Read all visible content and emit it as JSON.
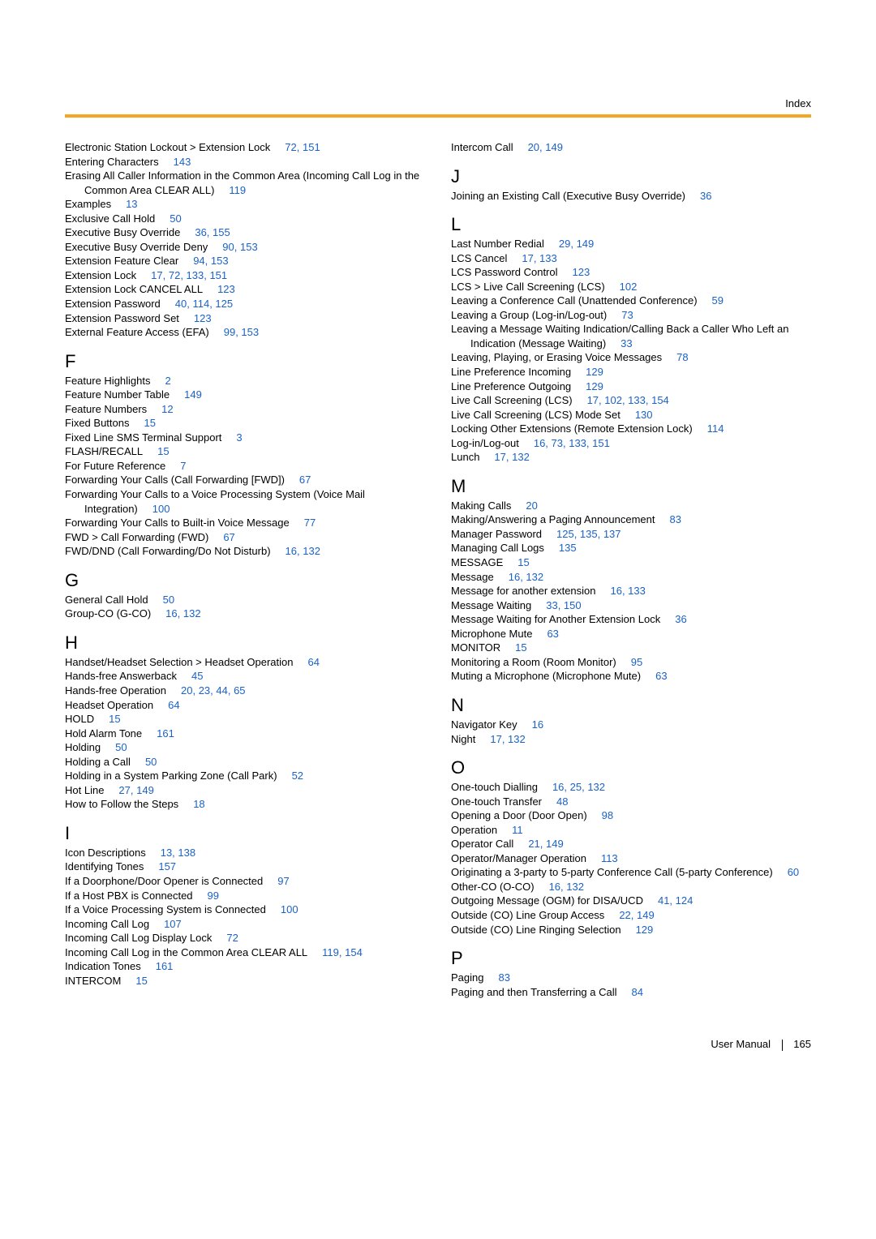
{
  "header": {
    "label": "Index"
  },
  "footer": {
    "left": "User Manual",
    "pageNum": "165"
  },
  "columns": {
    "left": [
      {
        "type": "entry",
        "text": "Electronic Station Lockout  > Extension Lock",
        "pages": "72, 151",
        "name": "idx-electronic-station-lockout"
      },
      {
        "type": "entry",
        "text": "Entering Characters",
        "pages": "143",
        "name": "idx-entering-characters"
      },
      {
        "type": "entry",
        "text": "Erasing All Caller Information in the Common Area (Incoming Call Log in the Common Area CLEAR ALL)",
        "pages": "119",
        "name": "idx-erasing-caller-info"
      },
      {
        "type": "entry",
        "text": "Examples",
        "pages": "13",
        "name": "idx-examples"
      },
      {
        "type": "entry",
        "text": "Exclusive Call Hold",
        "pages": "50",
        "name": "idx-exclusive-call-hold"
      },
      {
        "type": "entry",
        "text": "Executive Busy Override",
        "pages": "36, 155",
        "name": "idx-executive-busy-override"
      },
      {
        "type": "entry",
        "text": "Executive Busy Override Deny",
        "pages": "90, 153",
        "name": "idx-executive-busy-override-deny"
      },
      {
        "type": "entry",
        "text": "Extension Feature Clear",
        "pages": "94, 153",
        "name": "idx-extension-feature-clear"
      },
      {
        "type": "entry",
        "text": "Extension Lock",
        "pages": "17, 72, 133, 151",
        "name": "idx-extension-lock"
      },
      {
        "type": "entry",
        "text": "Extension Lock CANCEL ALL",
        "pages": "123",
        "name": "idx-extension-lock-cancel-all"
      },
      {
        "type": "entry",
        "text": "Extension Password",
        "pages": "40, 114, 125",
        "name": "idx-extension-password"
      },
      {
        "type": "entry",
        "text": "Extension Password Set",
        "pages": "123",
        "name": "idx-extension-password-set"
      },
      {
        "type": "entry",
        "text": "External Feature Access (EFA)",
        "pages": "99, 153",
        "name": "idx-external-feature-access"
      },
      {
        "type": "letter",
        "text": "F",
        "name": "letter-f"
      },
      {
        "type": "entry",
        "text": "Feature Highlights",
        "pages": "2",
        "name": "idx-feature-highlights"
      },
      {
        "type": "entry",
        "text": "Feature Number Table",
        "pages": "149",
        "name": "idx-feature-number-table"
      },
      {
        "type": "entry",
        "text": "Feature Numbers",
        "pages": "12",
        "name": "idx-feature-numbers"
      },
      {
        "type": "entry",
        "text": "Fixed Buttons",
        "pages": "15",
        "name": "idx-fixed-buttons"
      },
      {
        "type": "entry",
        "text": "Fixed Line SMS Terminal Support",
        "pages": "3",
        "name": "idx-fixed-line-sms"
      },
      {
        "type": "entry",
        "text": "FLASH/RECALL",
        "pages": "15",
        "name": "idx-flash-recall"
      },
      {
        "type": "entry",
        "text": "For Future Reference",
        "pages": "7",
        "name": "idx-for-future-reference"
      },
      {
        "type": "entry",
        "text": "Forwarding Your Calls (Call Forwarding [FWD])",
        "pages": "67",
        "name": "idx-forwarding-calls"
      },
      {
        "type": "entry",
        "text": "Forwarding Your Calls to a Voice Processing System (Voice Mail Integration)",
        "pages": "100",
        "name": "idx-forwarding-voice-processing"
      },
      {
        "type": "entry",
        "text": "Forwarding Your Calls to Built-in Voice Message",
        "pages": "77",
        "name": "idx-forwarding-builtin-voice"
      },
      {
        "type": "entry",
        "text": "FWD  > Call Forwarding (FWD)",
        "pages": "67",
        "name": "idx-fwd-call-forwarding"
      },
      {
        "type": "entry",
        "text": "FWD/DND (Call Forwarding/Do Not Disturb)",
        "pages": "16, 132",
        "name": "idx-fwd-dnd"
      },
      {
        "type": "letter",
        "text": "G",
        "name": "letter-g"
      },
      {
        "type": "entry",
        "text": "General Call Hold",
        "pages": "50",
        "name": "idx-general-call-hold"
      },
      {
        "type": "entry",
        "text": "Group-CO (G-CO)",
        "pages": "16, 132",
        "name": "idx-group-co"
      },
      {
        "type": "letter",
        "text": "H",
        "name": "letter-h"
      },
      {
        "type": "entry",
        "text": "Handset/Headset Selection  > Headset Operation",
        "pages": "64",
        "name": "idx-handset-headset-selection"
      },
      {
        "type": "entry",
        "text": "Hands-free Answerback",
        "pages": "45",
        "name": "idx-hands-free-answerback"
      },
      {
        "type": "entry",
        "text": "Hands-free Operation",
        "pages": "20, 23, 44, 65",
        "name": "idx-hands-free-operation"
      },
      {
        "type": "entry",
        "text": "Headset Operation",
        "pages": "64",
        "name": "idx-headset-operation"
      },
      {
        "type": "entry",
        "text": "HOLD",
        "pages": "15",
        "name": "idx-hold"
      },
      {
        "type": "entry",
        "text": "Hold Alarm Tone",
        "pages": "161",
        "name": "idx-hold-alarm-tone"
      },
      {
        "type": "entry",
        "text": "Holding",
        "pages": "50",
        "name": "idx-holding"
      },
      {
        "type": "entry",
        "text": "Holding a Call",
        "pages": "50",
        "name": "idx-holding-a-call"
      },
      {
        "type": "entry",
        "text": "Holding in a System Parking Zone (Call Park)",
        "pages": "52",
        "name": "idx-holding-parking-zone"
      },
      {
        "type": "entry",
        "text": "Hot Line",
        "pages": "27, 149",
        "name": "idx-hot-line"
      },
      {
        "type": "entry",
        "text": "How to Follow the Steps",
        "pages": "18",
        "name": "idx-how-to-follow"
      },
      {
        "type": "letter",
        "text": "I",
        "name": "letter-i"
      },
      {
        "type": "entry",
        "text": "Icon Descriptions",
        "pages": "13, 138",
        "name": "idx-icon-descriptions"
      },
      {
        "type": "entry",
        "text": "Identifying Tones",
        "pages": "157",
        "name": "idx-identifying-tones"
      },
      {
        "type": "entry",
        "text": "If a Doorphone/Door Opener is Connected",
        "pages": "97",
        "name": "idx-doorphone-connected"
      },
      {
        "type": "entry",
        "text": "If a Host PBX is Connected",
        "pages": "99",
        "name": "idx-host-pbx-connected"
      },
      {
        "type": "entry",
        "text": "If a Voice Processing System is Connected",
        "pages": "100",
        "name": "idx-voice-processing-connected"
      },
      {
        "type": "entry",
        "text": "Incoming Call Log",
        "pages": "107",
        "name": "idx-incoming-call-log"
      },
      {
        "type": "entry",
        "text": "Incoming Call Log Display Lock",
        "pages": "72",
        "name": "idx-incoming-call-log-display-lock"
      },
      {
        "type": "entry",
        "text": "Incoming Call Log in the Common Area CLEAR ALL",
        "pages": "119, 154",
        "name": "idx-incoming-call-log-clear-all"
      },
      {
        "type": "entry",
        "text": "Indication Tones",
        "pages": "161",
        "name": "idx-indication-tones"
      },
      {
        "type": "entry",
        "text": "INTERCOM",
        "pages": "15",
        "name": "idx-intercom-caps"
      }
    ],
    "right": [
      {
        "type": "entry",
        "text": "Intercom Call",
        "pages": "20, 149",
        "name": "idx-intercom-call"
      },
      {
        "type": "letter",
        "text": "J",
        "name": "letter-j"
      },
      {
        "type": "entry",
        "text": "Joining an Existing Call (Executive Busy Override)",
        "pages": "36",
        "name": "idx-joining-existing-call"
      },
      {
        "type": "letter",
        "text": "L",
        "name": "letter-l"
      },
      {
        "type": "entry",
        "text": "Last Number Redial",
        "pages": "29, 149",
        "name": "idx-last-number-redial"
      },
      {
        "type": "entry",
        "text": "LCS Cancel",
        "pages": "17, 133",
        "name": "idx-lcs-cancel"
      },
      {
        "type": "entry",
        "text": "LCS Password Control",
        "pages": "123",
        "name": "idx-lcs-password-control"
      },
      {
        "type": "entry",
        "text": "LCS  > Live Call Screening (LCS)",
        "pages": "102",
        "name": "idx-lcs-live-call-screening"
      },
      {
        "type": "entry",
        "text": "Leaving a Conference Call (Unattended Conference)",
        "pages": "59",
        "name": "idx-leaving-conference"
      },
      {
        "type": "entry",
        "text": "Leaving a Group (Log-in/Log-out)",
        "pages": "73",
        "name": "idx-leaving-group"
      },
      {
        "type": "entry",
        "text": "Leaving a Message Waiting Indication/Calling Back a Caller Who Left an Indication (Message Waiting)",
        "pages": "33",
        "name": "idx-leaving-message-waiting"
      },
      {
        "type": "entry",
        "text": "Leaving, Playing, or Erasing Voice Messages",
        "pages": "78",
        "name": "idx-leaving-playing-erasing"
      },
      {
        "type": "entry",
        "text": "Line Preference Incoming",
        "pages": "129",
        "name": "idx-line-pref-incoming"
      },
      {
        "type": "entry",
        "text": "Line Preference Outgoing",
        "pages": "129",
        "name": "idx-line-pref-outgoing"
      },
      {
        "type": "entry",
        "text": "Live Call Screening (LCS)",
        "pages": "17, 102, 133, 154",
        "name": "idx-live-call-screening"
      },
      {
        "type": "entry",
        "text": "Live Call Screening (LCS) Mode Set",
        "pages": "130",
        "name": "idx-lcs-mode-set"
      },
      {
        "type": "entry",
        "text": "Locking Other Extensions (Remote Extension Lock)",
        "pages": "114",
        "name": "idx-locking-other-extensions"
      },
      {
        "type": "entry",
        "text": "Log-in/Log-out",
        "pages": "16, 73, 133, 151",
        "name": "idx-log-in-log-out"
      },
      {
        "type": "entry",
        "text": "Lunch",
        "pages": "17, 132",
        "name": "idx-lunch"
      },
      {
        "type": "letter",
        "text": "M",
        "name": "letter-m"
      },
      {
        "type": "entry",
        "text": "Making Calls",
        "pages": "20",
        "name": "idx-making-calls"
      },
      {
        "type": "entry",
        "text": "Making/Answering a Paging Announcement",
        "pages": "83",
        "name": "idx-making-answering-paging"
      },
      {
        "type": "entry",
        "text": "Manager Password",
        "pages": "125, 135, 137",
        "name": "idx-manager-password"
      },
      {
        "type": "entry",
        "text": "Managing Call Logs",
        "pages": "135",
        "name": "idx-managing-call-logs"
      },
      {
        "type": "entry",
        "text": "MESSAGE",
        "pages": "15",
        "name": "idx-message-caps"
      },
      {
        "type": "entry",
        "text": "Message",
        "pages": "16, 132",
        "name": "idx-message"
      },
      {
        "type": "entry",
        "text": "Message for another extension",
        "pages": "16, 133",
        "name": "idx-message-other-ext"
      },
      {
        "type": "entry",
        "text": "Message Waiting",
        "pages": "33, 150",
        "name": "idx-message-waiting"
      },
      {
        "type": "entry",
        "text": "Message Waiting for Another Extension Lock",
        "pages": "36",
        "name": "idx-message-waiting-lock"
      },
      {
        "type": "entry",
        "text": "Microphone Mute",
        "pages": "63",
        "name": "idx-microphone-mute"
      },
      {
        "type": "entry",
        "text": "MONITOR",
        "pages": "15",
        "name": "idx-monitor"
      },
      {
        "type": "entry",
        "text": "Monitoring a Room (Room Monitor)",
        "pages": "95",
        "name": "idx-monitoring-room"
      },
      {
        "type": "entry",
        "text": "Muting a Microphone (Microphone Mute)",
        "pages": "63",
        "name": "idx-muting-microphone"
      },
      {
        "type": "letter",
        "text": "N",
        "name": "letter-n"
      },
      {
        "type": "entry",
        "text": "Navigator Key",
        "pages": "16",
        "name": "idx-navigator-key"
      },
      {
        "type": "entry",
        "text": "Night",
        "pages": "17, 132",
        "name": "idx-night"
      },
      {
        "type": "letter",
        "text": "O",
        "name": "letter-o"
      },
      {
        "type": "entry",
        "text": "One-touch Dialling",
        "pages": "16, 25, 132",
        "name": "idx-one-touch-dialling"
      },
      {
        "type": "entry",
        "text": "One-touch Transfer",
        "pages": "48",
        "name": "idx-one-touch-transfer"
      },
      {
        "type": "entry",
        "text": "Opening a Door (Door Open)",
        "pages": "98",
        "name": "idx-opening-door"
      },
      {
        "type": "entry",
        "text": "Operation",
        "pages": "11",
        "name": "idx-operation"
      },
      {
        "type": "entry",
        "text": "Operator Call",
        "pages": "21, 149",
        "name": "idx-operator-call"
      },
      {
        "type": "entry",
        "text": "Operator/Manager Operation",
        "pages": "113",
        "name": "idx-operator-manager"
      },
      {
        "type": "entry",
        "text": "Originating a 3-party to 5-party Conference Call (5-party Conference)",
        "pages": "60",
        "name": "idx-originating-conference"
      },
      {
        "type": "entry",
        "text": "Other-CO (O-CO)",
        "pages": "16, 132",
        "name": "idx-other-co"
      },
      {
        "type": "entry",
        "text": "Outgoing Message (OGM) for DISA/UCD",
        "pages": "41, 124",
        "name": "idx-outgoing-message"
      },
      {
        "type": "entry",
        "text": "Outside (CO) Line Group Access",
        "pages": "22, 149",
        "name": "idx-outside-line-group"
      },
      {
        "type": "entry",
        "text": "Outside (CO) Line Ringing Selection",
        "pages": "129",
        "name": "idx-outside-line-ringing"
      },
      {
        "type": "letter",
        "text": "P",
        "name": "letter-p"
      },
      {
        "type": "entry",
        "text": "Paging",
        "pages": "83",
        "name": "idx-paging"
      },
      {
        "type": "entry",
        "text": "Paging and then Transferring a Call",
        "pages": "84",
        "name": "idx-paging-transferring"
      }
    ]
  }
}
